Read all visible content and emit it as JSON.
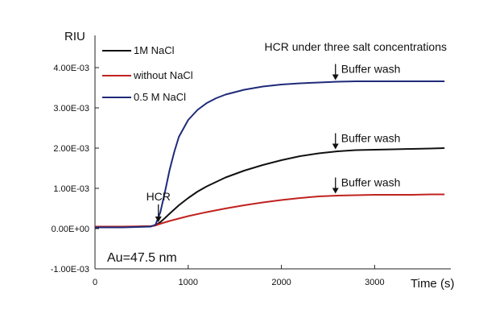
{
  "chart_data": {
    "type": "line",
    "title": "HCR under three salt concentrations",
    "ylabel": "RIU",
    "xlabel": "Time (s)",
    "xlim": [
      0,
      3800
    ],
    "ylim": [
      -0.001,
      0.0048
    ],
    "x_ticks": [
      {
        "value": 0,
        "label": "0"
      },
      {
        "value": 1000,
        "label": "1000"
      },
      {
        "value": 2000,
        "label": "2000"
      },
      {
        "value": 3000,
        "label": "3000"
      }
    ],
    "y_ticks": [
      {
        "value": -0.001,
        "label": "-1.00E-03"
      },
      {
        "value": 0,
        "label": "0.00E+00"
      },
      {
        "value": 0.001,
        "label": "1.00E-03"
      },
      {
        "value": 0.002,
        "label": "2.00E-03"
      },
      {
        "value": 0.003,
        "label": "3.00E-03"
      },
      {
        "value": 0.004,
        "label": "4.00E-03"
      }
    ],
    "legend_position": "top-left",
    "grid": false,
    "series": [
      {
        "name": "1M NaCl",
        "color": "#111111",
        "x": [
          0,
          300,
          600,
          650,
          700,
          750,
          800,
          900,
          1000,
          1100,
          1200,
          1400,
          1600,
          1800,
          2000,
          2200,
          2400,
          2600,
          2800,
          3000,
          3200,
          3400,
          3600,
          3750
        ],
        "y": [
          3e-05,
          4e-05,
          6e-05,
          8e-05,
          0.00016,
          0.00026,
          0.00037,
          0.00058,
          0.00076,
          0.00092,
          0.00105,
          0.00127,
          0.00144,
          0.00158,
          0.0017,
          0.0018,
          0.00187,
          0.00192,
          0.00195,
          0.00196,
          0.00197,
          0.00198,
          0.00199,
          0.002
        ]
      },
      {
        "name": "without NaCl",
        "color": "#c0221f",
        "x": [
          0,
          300,
          600,
          650,
          700,
          800,
          900,
          1000,
          1200,
          1400,
          1600,
          1800,
          2000,
          2200,
          2400,
          2600,
          2800,
          3000,
          3200,
          3400,
          3600,
          3750
        ],
        "y": [
          5e-05,
          5e-05,
          6e-05,
          8e-05,
          0.00012,
          0.00019,
          0.00025,
          0.00031,
          0.00041,
          0.0005,
          0.00058,
          0.00065,
          0.00071,
          0.00076,
          0.0008,
          0.00082,
          0.00083,
          0.00084,
          0.00084,
          0.00084,
          0.00085,
          0.00085
        ]
      },
      {
        "name": "0.5 M NaCl",
        "color": "#1f2a7a",
        "x": [
          0,
          300,
          600,
          650,
          700,
          750,
          800,
          850,
          900,
          1000,
          1100,
          1200,
          1300,
          1400,
          1600,
          1800,
          2000,
          2200,
          2400,
          2600,
          2800,
          3000,
          3200,
          3400,
          3600,
          3750
        ],
        "y": [
          3e-05,
          3e-05,
          5e-05,
          0.0001,
          0.0004,
          0.0009,
          0.00145,
          0.0019,
          0.00228,
          0.0027,
          0.00295,
          0.00312,
          0.00324,
          0.00333,
          0.00345,
          0.00353,
          0.00358,
          0.00361,
          0.00363,
          0.00365,
          0.00366,
          0.00366,
          0.00366,
          0.00366,
          0.00366,
          0.00366
        ]
      }
    ],
    "annotations": [
      {
        "text": "HCR",
        "x": 680,
        "y": 0.00012
      },
      {
        "text": "Buffer wash",
        "x": 2580,
        "y": 0.00365
      },
      {
        "text": "Buffer wash",
        "x": 2580,
        "y": 0.00193
      },
      {
        "text": "Buffer wash",
        "x": 2580,
        "y": 0.00083
      }
    ],
    "inset_text": "Au=47.5 nm"
  }
}
